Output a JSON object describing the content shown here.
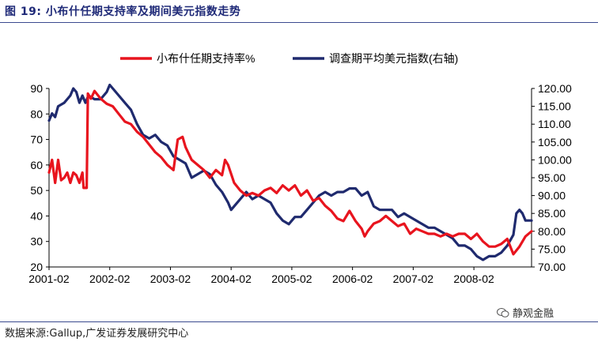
{
  "header": {
    "title": "图 19:  小布什任期支持率及期间美元指数走势"
  },
  "footer": {
    "source": "数据来源:Gallup,广发证券发展研究中心",
    "watermark": "静观金融"
  },
  "colors": {
    "approval": "#e8141e",
    "dxy": "#1f2a6e",
    "title": "#1f2a78"
  },
  "chart_data": {
    "type": "line",
    "legend_position": "top",
    "grid": false,
    "x_ticks": [
      "2001-02",
      "2002-02",
      "2003-02",
      "2004-02",
      "2005-02",
      "2006-02",
      "2007-02",
      "2008-02"
    ],
    "x_domain": [
      2001.05,
      2009.0
    ],
    "y_left": {
      "min": 20,
      "max": 90,
      "ticks": [
        20,
        30,
        40,
        50,
        60,
        70,
        80,
        90
      ]
    },
    "y_right": {
      "min": 70,
      "max": 120,
      "ticks": [
        "70.00",
        "75.00",
        "80.00",
        "85.00",
        "90.00",
        "95.00",
        "100.00",
        "105.00",
        "110.00",
        "115.00",
        "120.00"
      ]
    },
    "series": [
      {
        "name": "小布什任期支持率%",
        "axis": "left",
        "color": "#e8141e",
        "points": [
          [
            2001.05,
            57
          ],
          [
            2001.1,
            62
          ],
          [
            2001.15,
            53
          ],
          [
            2001.2,
            62
          ],
          [
            2001.25,
            54
          ],
          [
            2001.3,
            55
          ],
          [
            2001.35,
            57
          ],
          [
            2001.4,
            53
          ],
          [
            2001.45,
            57
          ],
          [
            2001.5,
            56
          ],
          [
            2001.55,
            53
          ],
          [
            2001.6,
            57
          ],
          [
            2001.62,
            51
          ],
          [
            2001.67,
            51
          ],
          [
            2001.69,
            88
          ],
          [
            2001.74,
            86
          ],
          [
            2001.8,
            89
          ],
          [
            2001.9,
            86
          ],
          [
            2002.0,
            84
          ],
          [
            2002.1,
            83
          ],
          [
            2002.2,
            80
          ],
          [
            2002.3,
            77
          ],
          [
            2002.4,
            76
          ],
          [
            2002.5,
            73
          ],
          [
            2002.6,
            71
          ],
          [
            2002.7,
            68
          ],
          [
            2002.8,
            65
          ],
          [
            2002.9,
            63
          ],
          [
            2003.0,
            60
          ],
          [
            2003.1,
            58
          ],
          [
            2003.17,
            70
          ],
          [
            2003.25,
            71
          ],
          [
            2003.3,
            67
          ],
          [
            2003.4,
            62
          ],
          [
            2003.5,
            60
          ],
          [
            2003.6,
            58
          ],
          [
            2003.7,
            55
          ],
          [
            2003.8,
            58
          ],
          [
            2003.9,
            56
          ],
          [
            2003.95,
            62
          ],
          [
            2004.0,
            60
          ],
          [
            2004.1,
            53
          ],
          [
            2004.2,
            50
          ],
          [
            2004.3,
            48
          ],
          [
            2004.4,
            49
          ],
          [
            2004.5,
            48
          ],
          [
            2004.6,
            50
          ],
          [
            2004.7,
            51
          ],
          [
            2004.8,
            49
          ],
          [
            2004.9,
            52
          ],
          [
            2005.0,
            50
          ],
          [
            2005.1,
            52
          ],
          [
            2005.2,
            48
          ],
          [
            2005.3,
            50
          ],
          [
            2005.4,
            46
          ],
          [
            2005.5,
            47
          ],
          [
            2005.6,
            44
          ],
          [
            2005.7,
            42
          ],
          [
            2005.8,
            39
          ],
          [
            2005.9,
            38
          ],
          [
            2006.0,
            42
          ],
          [
            2006.1,
            38
          ],
          [
            2006.2,
            35
          ],
          [
            2006.25,
            32
          ],
          [
            2006.3,
            34
          ],
          [
            2006.4,
            37
          ],
          [
            2006.5,
            38
          ],
          [
            2006.6,
            40
          ],
          [
            2006.7,
            38
          ],
          [
            2006.8,
            36
          ],
          [
            2006.9,
            37
          ],
          [
            2007.0,
            33
          ],
          [
            2007.1,
            35
          ],
          [
            2007.2,
            34
          ],
          [
            2007.3,
            33
          ],
          [
            2007.4,
            33
          ],
          [
            2007.5,
            32
          ],
          [
            2007.6,
            33
          ],
          [
            2007.7,
            32
          ],
          [
            2007.8,
            33
          ],
          [
            2007.9,
            33
          ],
          [
            2008.0,
            31
          ],
          [
            2008.05,
            32
          ],
          [
            2008.1,
            33
          ],
          [
            2008.2,
            30
          ],
          [
            2008.3,
            28
          ],
          [
            2008.4,
            28
          ],
          [
            2008.5,
            29
          ],
          [
            2008.6,
            31
          ],
          [
            2008.7,
            25
          ],
          [
            2008.8,
            28
          ],
          [
            2008.9,
            32
          ],
          [
            2009.0,
            34
          ]
        ]
      },
      {
        "name": "调查期平均美元指数(右轴)",
        "axis": "right",
        "color": "#1f2a6e",
        "points": [
          [
            2001.05,
            111
          ],
          [
            2001.1,
            113
          ],
          [
            2001.15,
            112
          ],
          [
            2001.2,
            115
          ],
          [
            2001.3,
            116
          ],
          [
            2001.4,
            118
          ],
          [
            2001.45,
            120
          ],
          [
            2001.5,
            119
          ],
          [
            2001.55,
            116
          ],
          [
            2001.6,
            118
          ],
          [
            2001.65,
            116
          ],
          [
            2001.7,
            118
          ],
          [
            2001.8,
            117
          ],
          [
            2001.9,
            117
          ],
          [
            2002.0,
            119
          ],
          [
            2002.05,
            121
          ],
          [
            2002.1,
            120
          ],
          [
            2002.2,
            118
          ],
          [
            2002.3,
            116
          ],
          [
            2002.4,
            114
          ],
          [
            2002.5,
            110
          ],
          [
            2002.6,
            107
          ],
          [
            2002.7,
            106
          ],
          [
            2002.8,
            107
          ],
          [
            2002.9,
            105
          ],
          [
            2003.0,
            104
          ],
          [
            2003.1,
            101
          ],
          [
            2003.2,
            100
          ],
          [
            2003.3,
            99
          ],
          [
            2003.4,
            95
          ],
          [
            2003.5,
            96
          ],
          [
            2003.6,
            97
          ],
          [
            2003.7,
            96
          ],
          [
            2003.8,
            93
          ],
          [
            2003.9,
            91
          ],
          [
            2004.0,
            88
          ],
          [
            2004.05,
            86
          ],
          [
            2004.1,
            87
          ],
          [
            2004.2,
            89
          ],
          [
            2004.3,
            91
          ],
          [
            2004.4,
            89
          ],
          [
            2004.5,
            90
          ],
          [
            2004.6,
            89
          ],
          [
            2004.7,
            88
          ],
          [
            2004.8,
            85
          ],
          [
            2004.9,
            83
          ],
          [
            2005.0,
            82
          ],
          [
            2005.1,
            84
          ],
          [
            2005.2,
            84
          ],
          [
            2005.3,
            86
          ],
          [
            2005.4,
            88
          ],
          [
            2005.5,
            90
          ],
          [
            2005.6,
            91
          ],
          [
            2005.7,
            90
          ],
          [
            2005.8,
            91
          ],
          [
            2005.9,
            91
          ],
          [
            2006.0,
            92
          ],
          [
            2006.1,
            92
          ],
          [
            2006.2,
            90
          ],
          [
            2006.3,
            91
          ],
          [
            2006.4,
            87
          ],
          [
            2006.5,
            86
          ],
          [
            2006.6,
            86
          ],
          [
            2006.7,
            86
          ],
          [
            2006.8,
            84
          ],
          [
            2006.9,
            85
          ],
          [
            2007.0,
            84
          ],
          [
            2007.1,
            83
          ],
          [
            2007.2,
            82
          ],
          [
            2007.3,
            81
          ],
          [
            2007.4,
            81
          ],
          [
            2007.5,
            80
          ],
          [
            2007.6,
            79
          ],
          [
            2007.7,
            78
          ],
          [
            2007.8,
            76
          ],
          [
            2007.9,
            76
          ],
          [
            2008.0,
            75
          ],
          [
            2008.1,
            73
          ],
          [
            2008.2,
            72
          ],
          [
            2008.3,
            73
          ],
          [
            2008.4,
            73
          ],
          [
            2008.5,
            74
          ],
          [
            2008.6,
            76
          ],
          [
            2008.7,
            79
          ],
          [
            2008.75,
            85
          ],
          [
            2008.8,
            86
          ],
          [
            2008.85,
            85
          ],
          [
            2008.9,
            83
          ],
          [
            2009.0,
            83
          ]
        ]
      }
    ]
  }
}
